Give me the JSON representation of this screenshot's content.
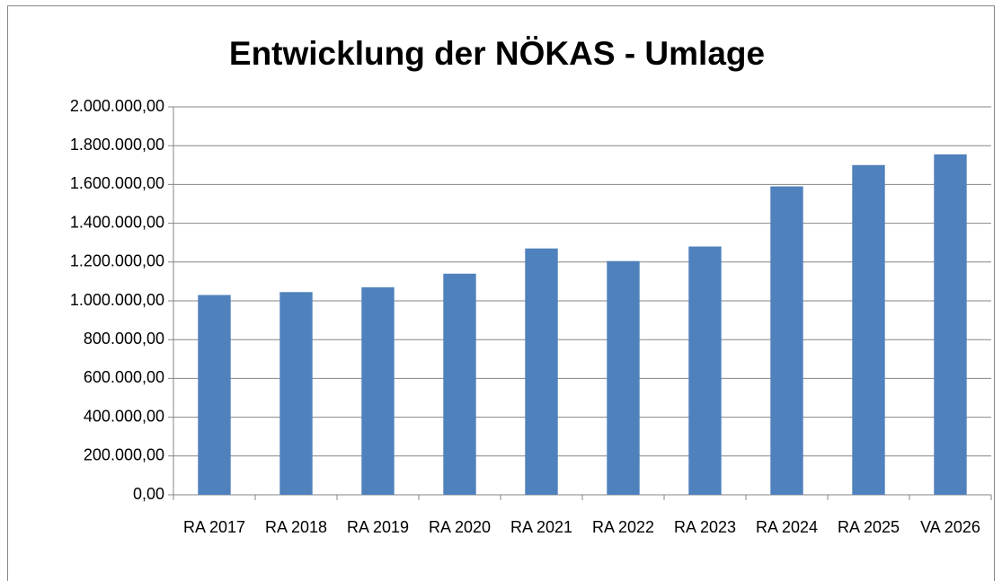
{
  "chart_data": {
    "type": "bar",
    "title": "Entwicklung der NÖKAS - Umlage",
    "categories": [
      "RA 2017",
      "RA 2018",
      "RA 2019",
      "RA 2020",
      "RA 2021",
      "RA 2022",
      "RA 2023",
      "RA 2024",
      "RA 2025",
      "VA 2026"
    ],
    "values": [
      1030000,
      1045000,
      1070000,
      1140000,
      1270000,
      1205000,
      1280000,
      1590000,
      1700000,
      1755000
    ],
    "color": "#4f81bd",
    "ylim": [
      0,
      2000000
    ],
    "yticks": [
      {
        "value": 0,
        "label": "0,00"
      },
      {
        "value": 200000,
        "label": "200.000,00"
      },
      {
        "value": 400000,
        "label": "400.000,00"
      },
      {
        "value": 600000,
        "label": "600.000,00"
      },
      {
        "value": 800000,
        "label": "800.000,00"
      },
      {
        "value": 1000000,
        "label": "1.000.000,00"
      },
      {
        "value": 1200000,
        "label": "1.200.000,00"
      },
      {
        "value": 1400000,
        "label": "1.400.000,00"
      },
      {
        "value": 1600000,
        "label": "1.600.000,00"
      },
      {
        "value": 1800000,
        "label": "1.800.000,00"
      },
      {
        "value": 2000000,
        "label": "2.000.000,00"
      }
    ],
    "grid": true
  }
}
